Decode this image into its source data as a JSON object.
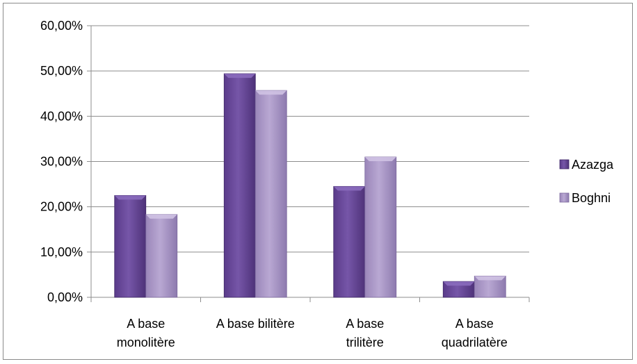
{
  "chart_data": {
    "type": "bar",
    "title": "",
    "xlabel": "",
    "ylabel": "",
    "categories": [
      [
        "A base",
        "monolitère"
      ],
      [
        "A base bilitère"
      ],
      [
        "A base",
        "trilitère"
      ],
      [
        "A base",
        "quadrilatère"
      ]
    ],
    "series": [
      {
        "name": "Azazga",
        "values": [
          22.5,
          49.4,
          24.5,
          3.5
        ],
        "color": "#6a4a9a"
      },
      {
        "name": "Boghni",
        "values": [
          18.3,
          45.7,
          31.0,
          4.7
        ],
        "color": "#a996c6"
      }
    ],
    "ylim": [
      0,
      60
    ],
    "yticks": [
      "0,00%",
      "10,00%",
      "20,00%",
      "30,00%",
      "40,00%",
      "50,00%",
      "60,00%"
    ],
    "grid": true,
    "legend_position": "right"
  }
}
